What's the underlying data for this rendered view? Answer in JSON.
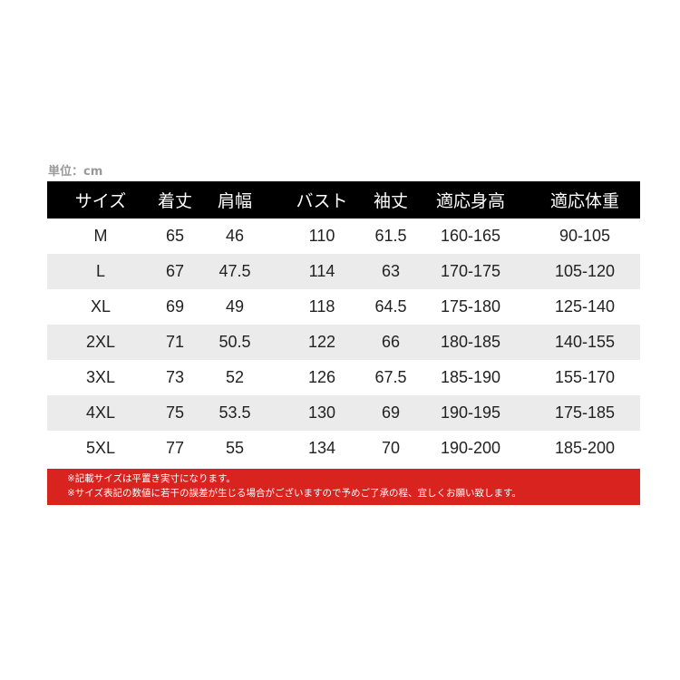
{
  "unit_label": "単位：cm",
  "headers": [
    "サイズ",
    "着丈",
    "肩幅",
    "バスト",
    "袖丈",
    "適応身高",
    "適応体重"
  ],
  "rows": [
    [
      "M",
      "65",
      "46",
      "110",
      "61.5",
      "160-165",
      "90-105"
    ],
    [
      "L",
      "67",
      "47.5",
      "114",
      "63",
      "170-175",
      "105-120"
    ],
    [
      "XL",
      "69",
      "49",
      "118",
      "64.5",
      "175-180",
      "125-140"
    ],
    [
      "2XL",
      "71",
      "50.5",
      "122",
      "66",
      "180-185",
      "140-155"
    ],
    [
      "3XL",
      "73",
      "52",
      "126",
      "67.5",
      "185-190",
      "155-170"
    ],
    [
      "4XL",
      "75",
      "53.5",
      "130",
      "69",
      "190-195",
      "175-185"
    ],
    [
      "5XL",
      "77",
      "55",
      "134",
      "70",
      "190-200",
      "185-200"
    ]
  ],
  "notes": [
    "※記載サイズは平置き実寸になります。",
    "※サイズ表記の数値に若干の誤差が生じる場合がございますので予めご了承の程、宜しくお願い致します。"
  ],
  "colors": {
    "header_bg": "#000000",
    "alt_row": "#ebebeb",
    "note_bg": "#d9231e"
  }
}
